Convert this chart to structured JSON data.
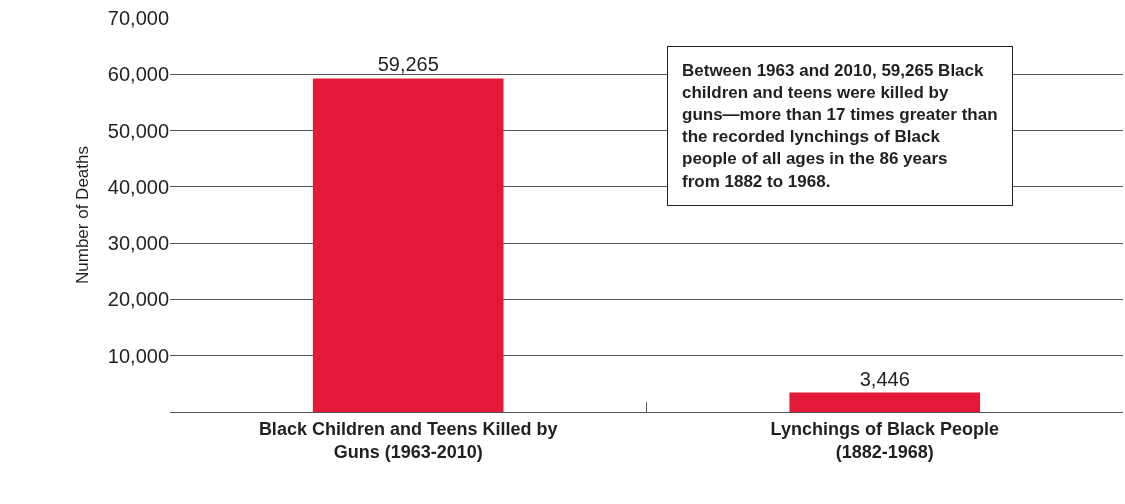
{
  "chart_data": {
    "type": "bar",
    "ylabel": "Number of Deaths",
    "categories": [
      "Black Children and Teens Killed by Guns (1963-2010)",
      "Lynchings of Black People (1882-1968)"
    ],
    "values": [
      59265,
      3446
    ],
    "value_labels": [
      "59,265",
      "3,446"
    ],
    "color": "#e31937",
    "ylim": [
      0,
      70000
    ],
    "yticks": [
      {
        "value": 0,
        "label": null
      },
      {
        "value": 10000,
        "label": "10,000"
      },
      {
        "value": 20000,
        "label": "20,000"
      },
      {
        "value": 30000,
        "label": "30,000"
      },
      {
        "value": 40000,
        "label": "40,000"
      },
      {
        "value": 50000,
        "label": "50,000"
      },
      {
        "value": 60000,
        "label": "60,000"
      },
      {
        "value": 70000,
        "label": "70,000"
      }
    ],
    "grid": "y",
    "annotations": [
      "Between 1963 and 2010, 59,265 Black children and teens were killed by guns—more than 17 times greater than the recorded lynchings of Black people of all ages in the 86 years from 1882 to 1968."
    ]
  }
}
